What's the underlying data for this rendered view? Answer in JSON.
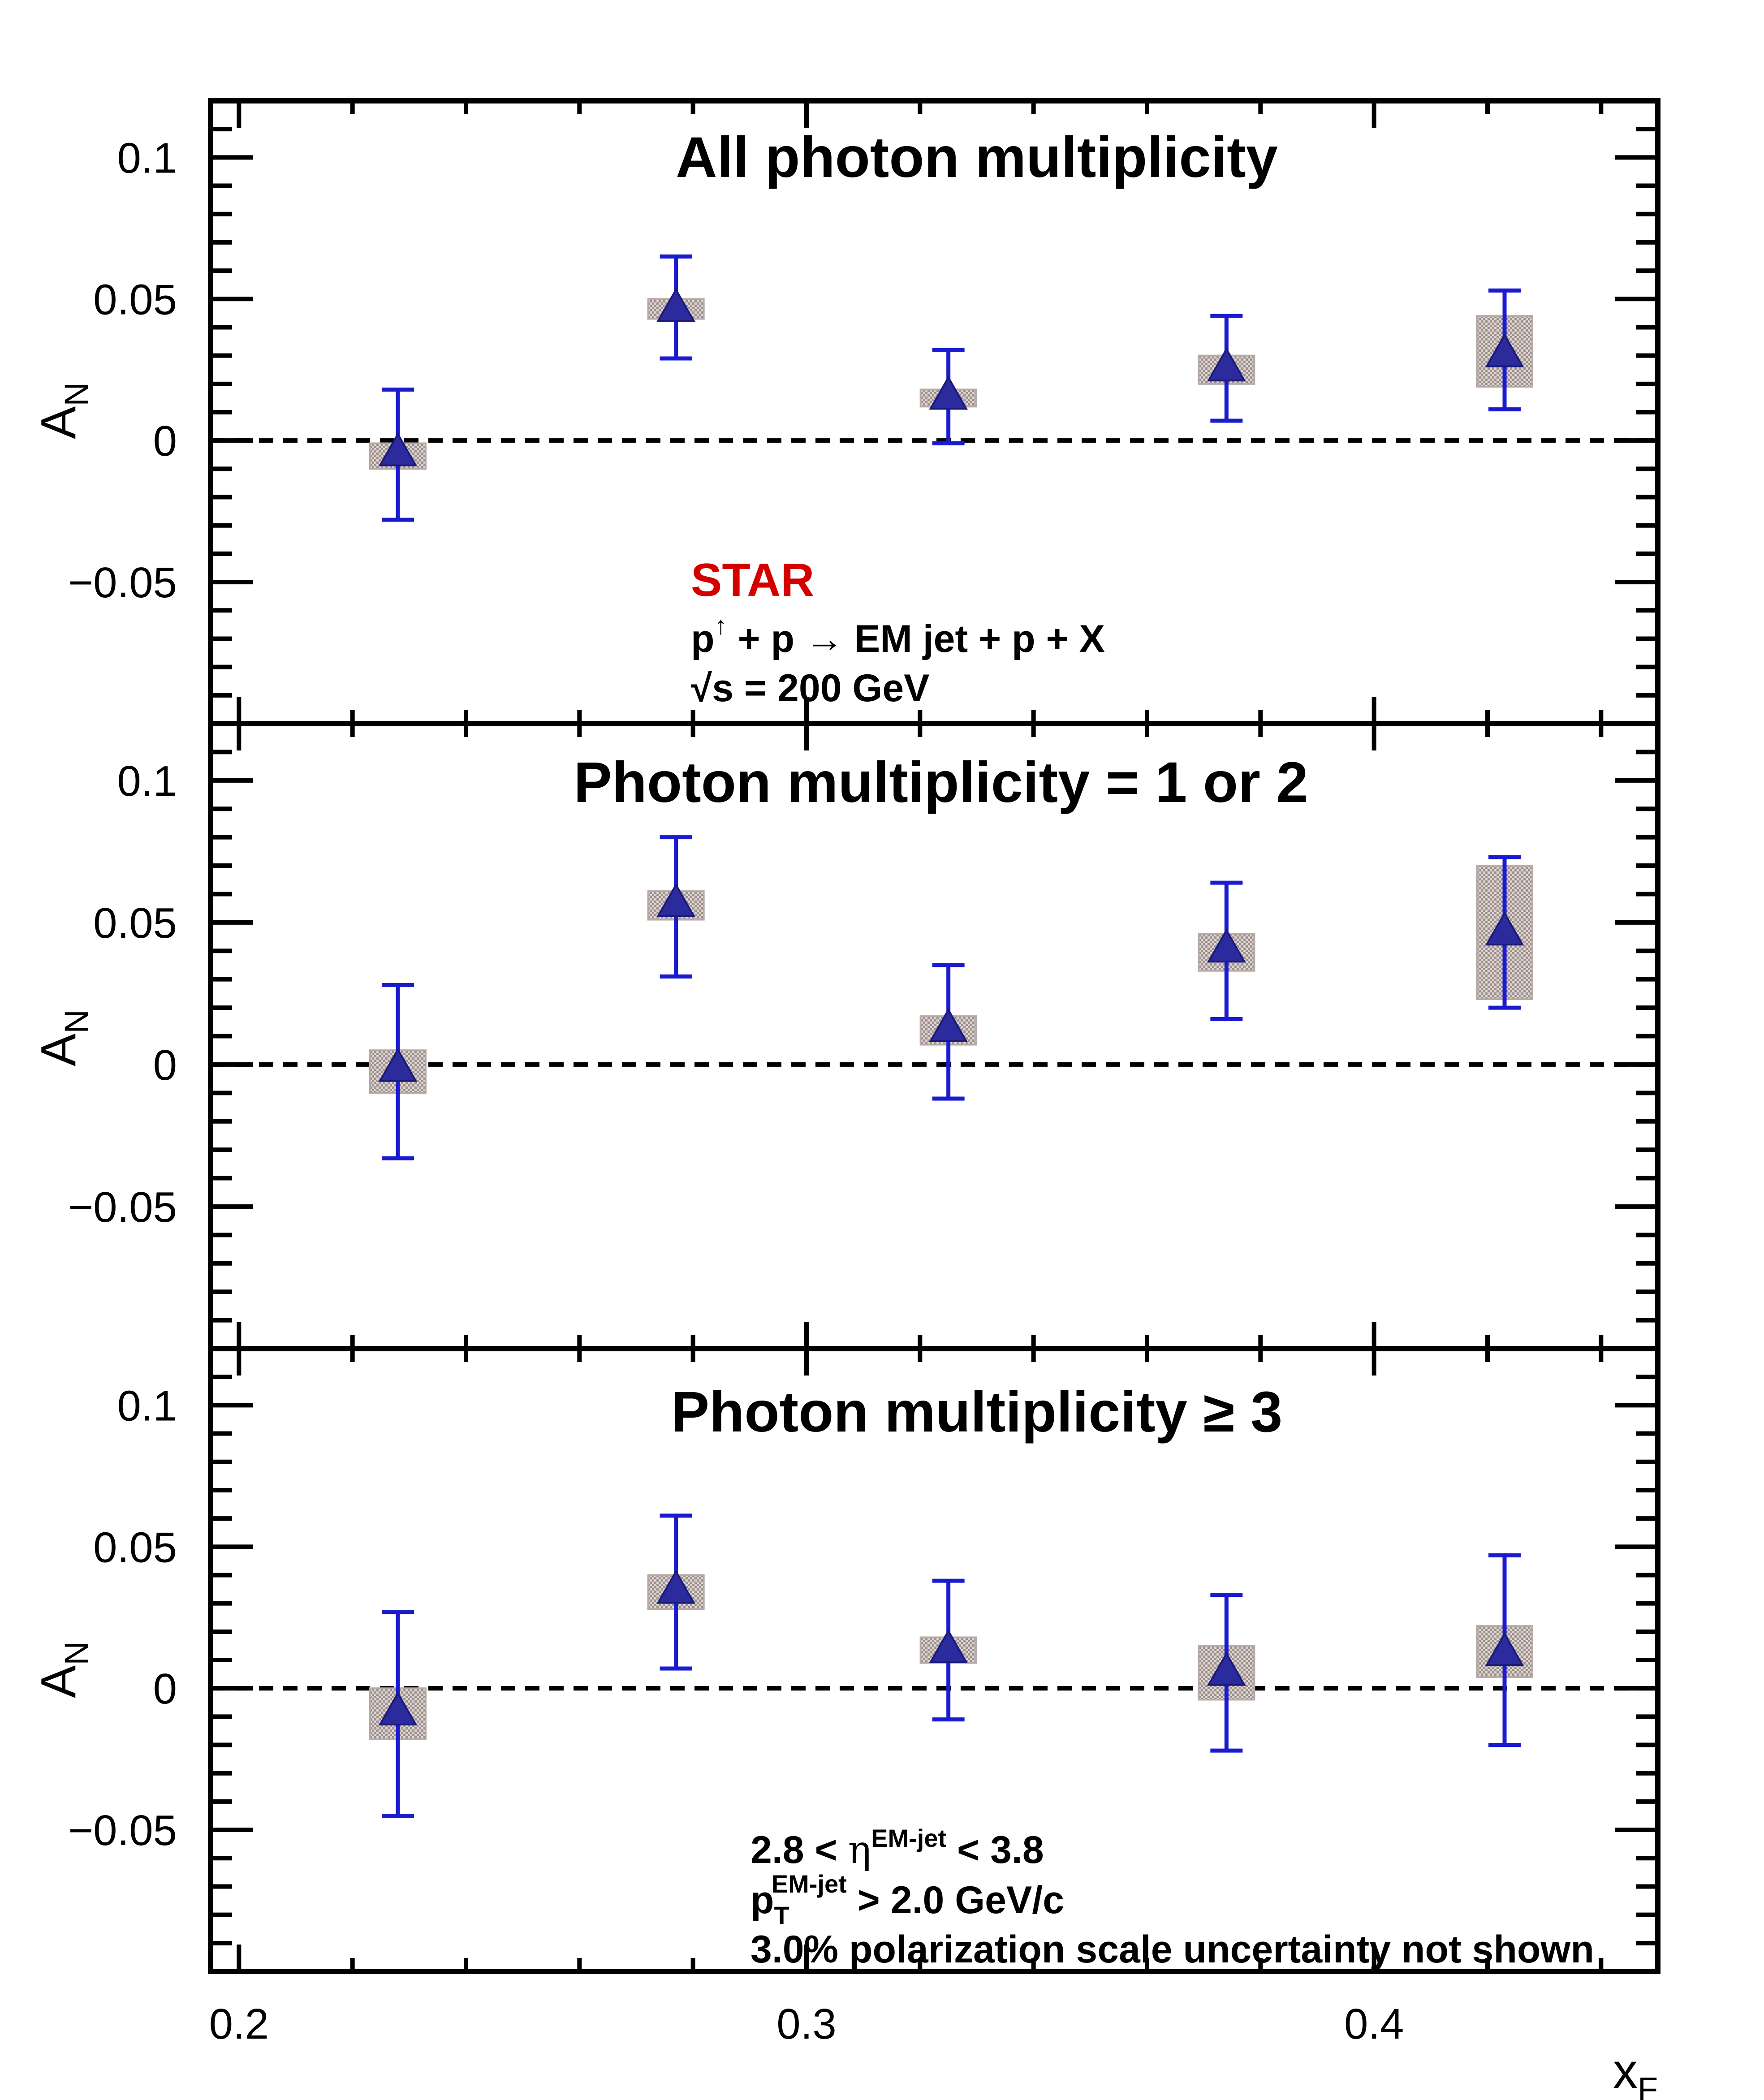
{
  "chart_data": [
    {
      "type": "scatter",
      "title": "All photon multiplicity",
      "ylabel": "A",
      "ylabel_sub": "N",
      "xlim": [
        0.195,
        0.45
      ],
      "ylim": [
        -0.1,
        0.12
      ],
      "yticks": [
        0.1,
        0.05,
        0,
        -0.05
      ],
      "ytick_labels": [
        "0.1",
        "0.05",
        "0",
        "−0.05"
      ],
      "reference_line": 0,
      "points": [
        {
          "x": 0.228,
          "y": -0.005,
          "stat_low": -0.028,
          "stat_high": 0.018,
          "sys_low": -0.01,
          "sys_high": -0.001
        },
        {
          "x": 0.277,
          "y": 0.046,
          "stat_low": 0.029,
          "stat_high": 0.065,
          "sys_low": 0.043,
          "sys_high": 0.05
        },
        {
          "x": 0.325,
          "y": 0.015,
          "stat_low": -0.001,
          "stat_high": 0.032,
          "sys_low": 0.012,
          "sys_high": 0.018
        },
        {
          "x": 0.374,
          "y": 0.025,
          "stat_low": 0.007,
          "stat_high": 0.044,
          "sys_low": 0.02,
          "sys_high": 0.03
        },
        {
          "x": 0.423,
          "y": 0.03,
          "stat_low": 0.011,
          "stat_high": 0.053,
          "sys_low": 0.019,
          "sys_high": 0.044
        }
      ],
      "annotation": {
        "experiment": "STAR",
        "reaction_a": "p",
        "reaction_sup": "↑",
        "reaction_b": " + p  → EM jet + p + X",
        "energy_root": "√s",
        "energy_rest": " = 200 GeV"
      }
    },
    {
      "type": "scatter",
      "title": "Photon multiplicity = 1 or 2",
      "ylabel": "A",
      "ylabel_sub": "N",
      "xlim": [
        0.195,
        0.45
      ],
      "ylim": [
        -0.1,
        0.12
      ],
      "yticks": [
        0.1,
        0.05,
        0,
        -0.05
      ],
      "ytick_labels": [
        "0.1",
        "0.05",
        "0",
        "−0.05"
      ],
      "reference_line": 0,
      "points": [
        {
          "x": 0.228,
          "y": -0.002,
          "stat_low": -0.033,
          "stat_high": 0.028,
          "sys_low": -0.01,
          "sys_high": 0.005
        },
        {
          "x": 0.277,
          "y": 0.056,
          "stat_low": 0.031,
          "stat_high": 0.08,
          "sys_low": 0.051,
          "sys_high": 0.061
        },
        {
          "x": 0.325,
          "y": 0.012,
          "stat_low": -0.012,
          "stat_high": 0.035,
          "sys_low": 0.007,
          "sys_high": 0.017
        },
        {
          "x": 0.374,
          "y": 0.04,
          "stat_low": 0.016,
          "stat_high": 0.064,
          "sys_low": 0.033,
          "sys_high": 0.046
        },
        {
          "x": 0.423,
          "y": 0.046,
          "stat_low": 0.02,
          "stat_high": 0.073,
          "sys_low": 0.023,
          "sys_high": 0.07
        }
      ]
    },
    {
      "type": "scatter",
      "title": "Photon multiplicity  ≥ 3",
      "ylabel": "A",
      "ylabel_sub": "N",
      "xlabel": "x",
      "xlabel_sub": "F",
      "xlim": [
        0.195,
        0.45
      ],
      "ylim": [
        -0.1,
        0.12
      ],
      "yticks": [
        0.1,
        0.05,
        0,
        -0.05
      ],
      "ytick_labels": [
        "0.1",
        "0.05",
        "0",
        "−0.05"
      ],
      "xticks": [
        0.2,
        0.3,
        0.4
      ],
      "xtick_labels": [
        "0.2",
        "0.3",
        "0.4"
      ],
      "reference_line": 0,
      "points": [
        {
          "x": 0.228,
          "y": -0.009,
          "stat_low": -0.045,
          "stat_high": 0.027,
          "sys_low": -0.018,
          "sys_high": 0.0
        },
        {
          "x": 0.277,
          "y": 0.034,
          "stat_low": 0.007,
          "stat_high": 0.061,
          "sys_low": 0.028,
          "sys_high": 0.04
        },
        {
          "x": 0.325,
          "y": 0.013,
          "stat_low": -0.011,
          "stat_high": 0.038,
          "sys_low": 0.009,
          "sys_high": 0.018
        },
        {
          "x": 0.374,
          "y": 0.005,
          "stat_low": -0.022,
          "stat_high": 0.033,
          "sys_low": -0.004,
          "sys_high": 0.015
        },
        {
          "x": 0.423,
          "y": 0.012,
          "stat_low": -0.02,
          "stat_high": 0.047,
          "sys_low": 0.004,
          "sys_high": 0.022
        }
      ],
      "annotation": {
        "eta_a": "2.8 < ",
        "eta_sym": "η",
        "eta_sup": "EM-jet",
        "eta_b": " < 3.8",
        "pt_a": "p",
        "pt_sub": "T",
        "pt_sup": "EM-jet",
        "pt_b": " > 2.0 GeV/c",
        "note": "3.0% polarization scale uncertainty not shown"
      }
    }
  ],
  "colors": {
    "marker": "#2b2b9e",
    "error_bar": "#1a1ad0",
    "systematic_box": "#b5aaa6",
    "star_label": "#d40000",
    "axis": "#000000"
  }
}
